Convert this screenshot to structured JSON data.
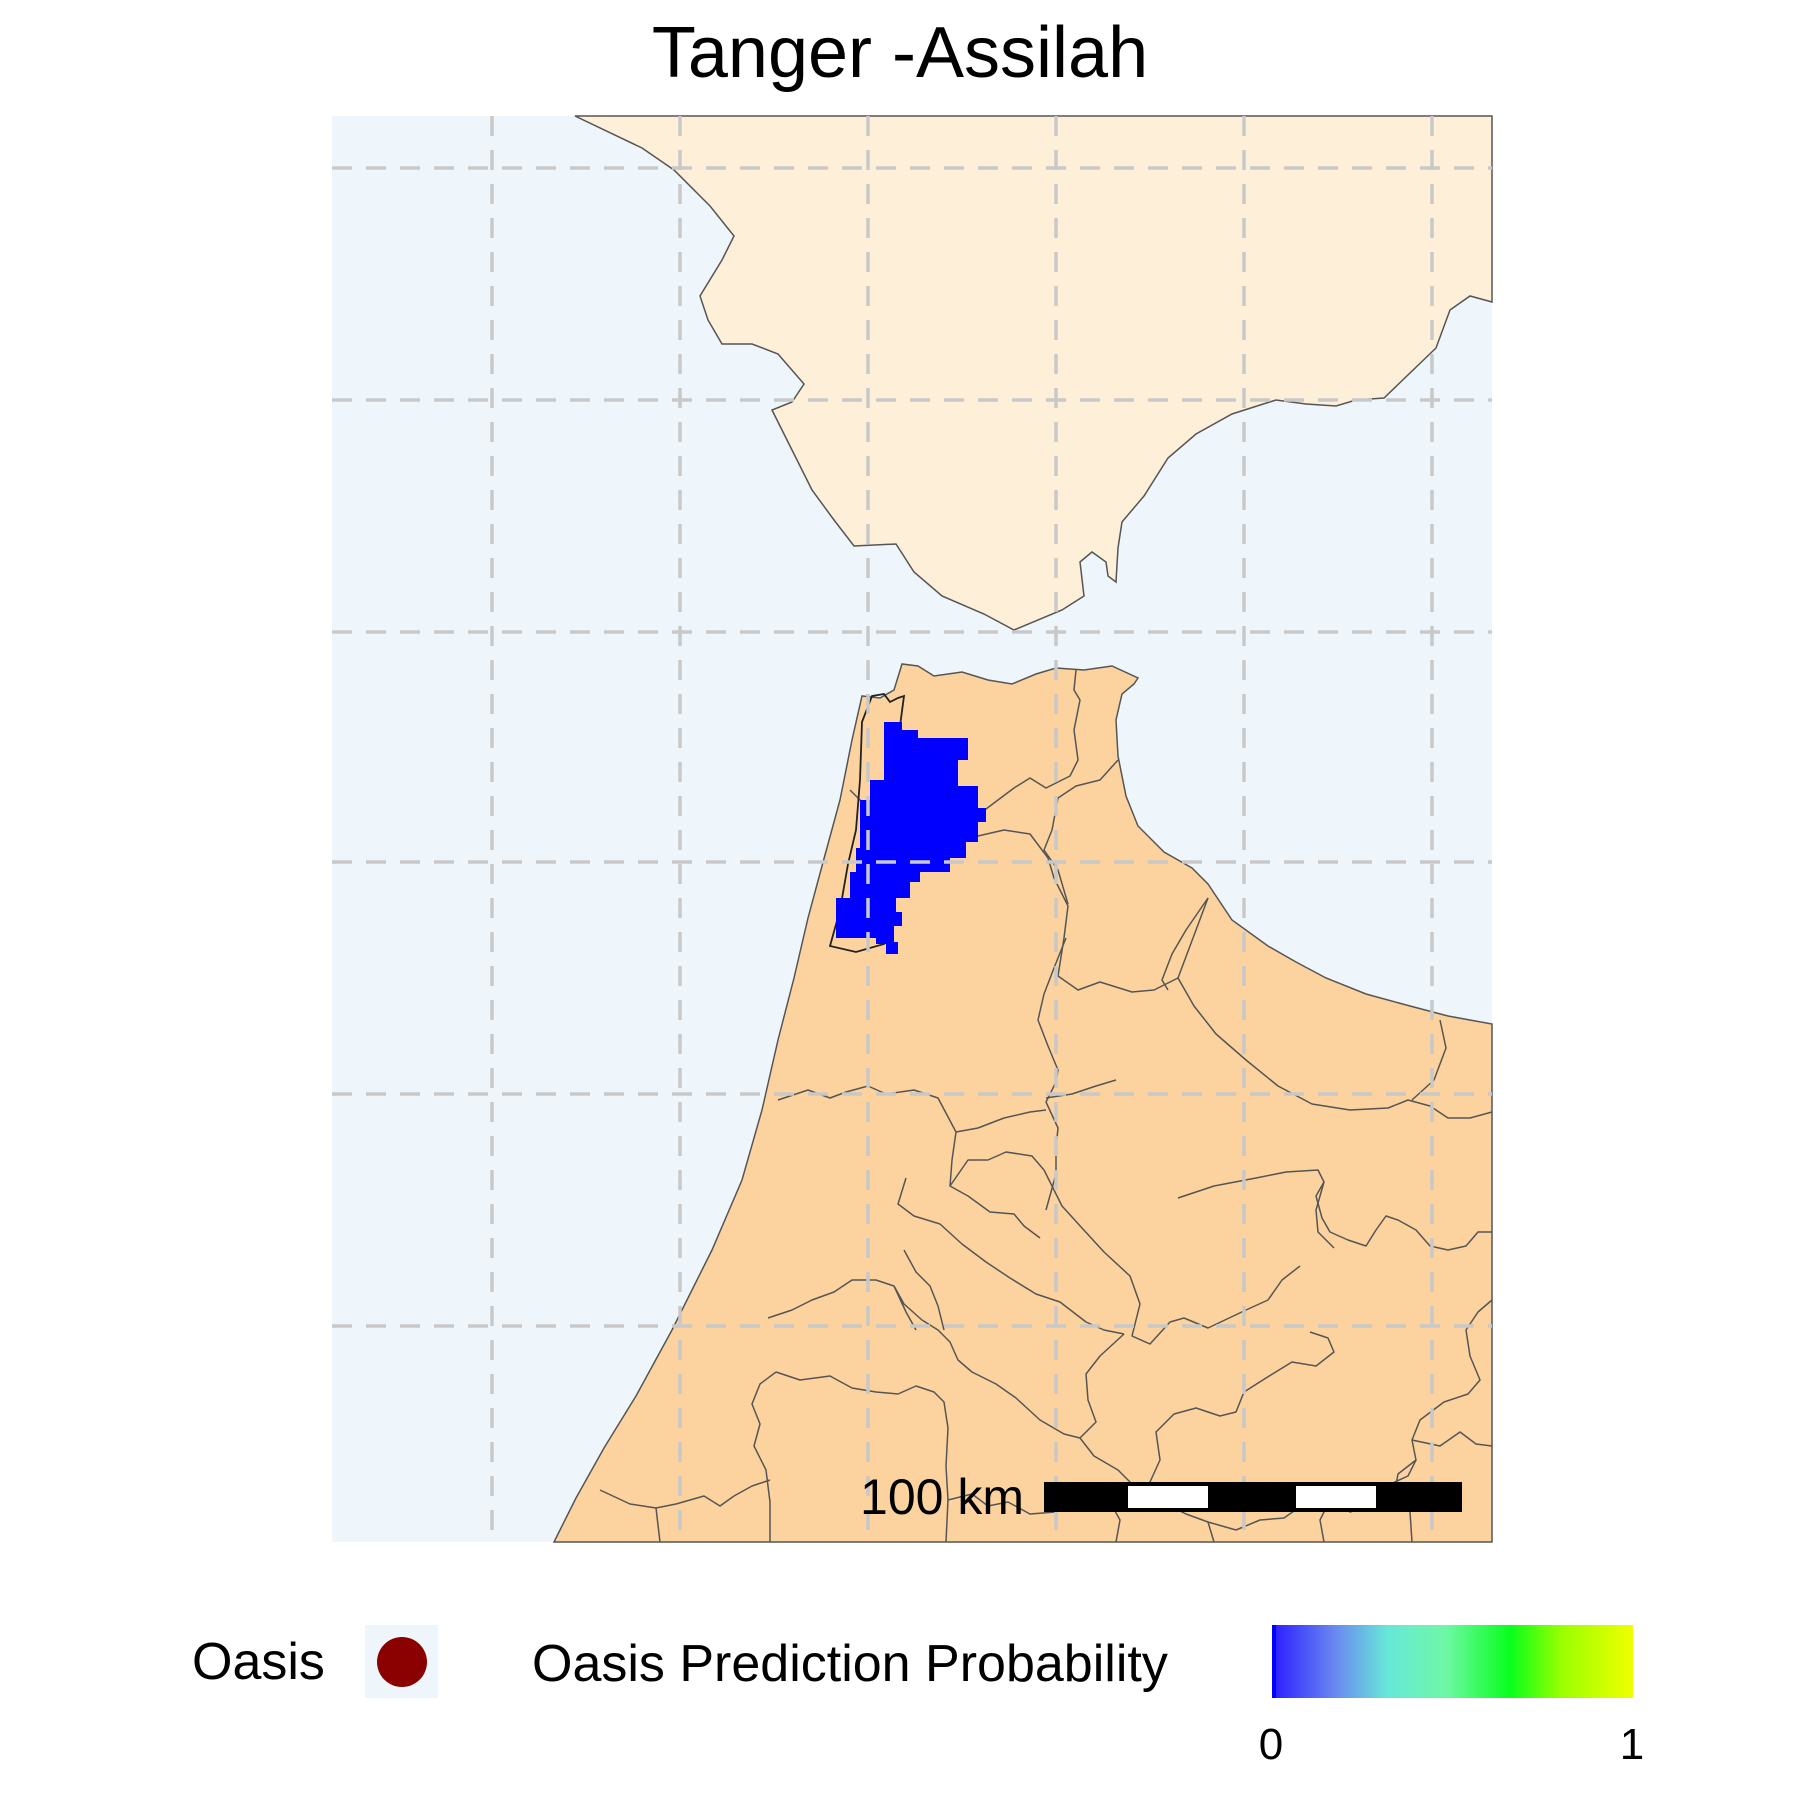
{
  "title": "Tanger -Assilah",
  "scale_bar": {
    "label": "100 km"
  },
  "legend": {
    "point_label": "Oasis",
    "point_color": "#8b0000",
    "gradient_label": "Oasis Prediction Probability",
    "gradient_min": "0",
    "gradient_max": "1",
    "gradient_colors": [
      "#2b1cff",
      "#6a8cf0",
      "#66e8d8",
      "#6ff7a6",
      "#08ff1e",
      "#99ff00",
      "#f0ff00"
    ]
  },
  "colors": {
    "sea": "#eef6fc",
    "spain_land": "#feefd9",
    "morocco_land": "#fcd39f",
    "boundary": "#555555",
    "graticule": "#c8c8c8",
    "prediction": "#0000ff"
  }
}
